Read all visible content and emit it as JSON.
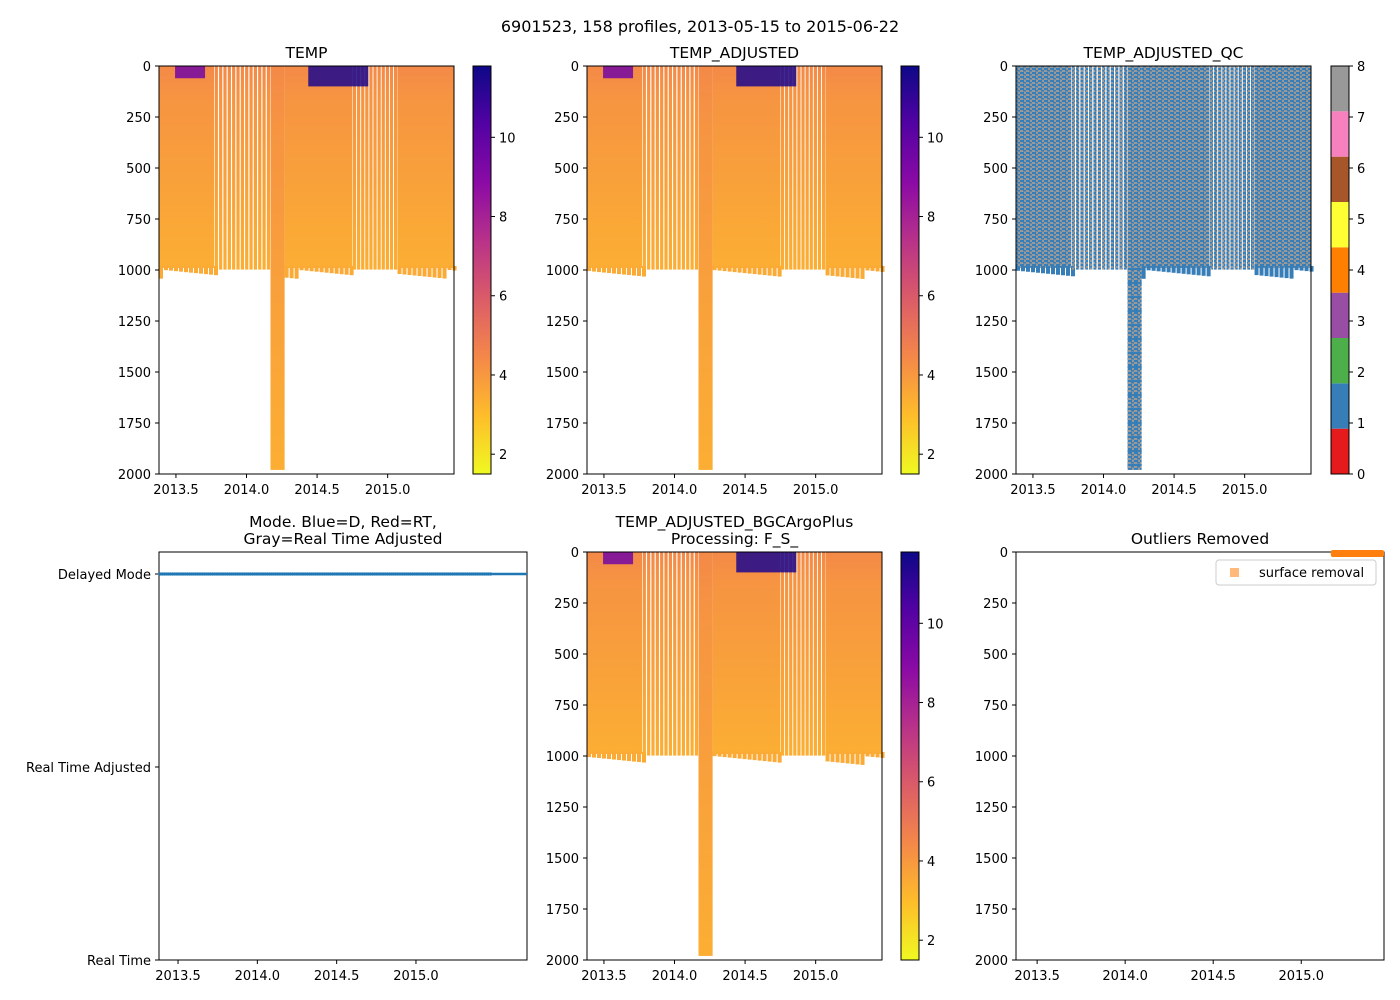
{
  "figure": {
    "title": "6901523, 158 profiles, 2013-05-15 to 2015-06-22"
  },
  "colors": {
    "plasma_stops": [
      "#0d0887",
      "#5302a3",
      "#8b0aa5",
      "#b83289",
      "#db5c68",
      "#f48849",
      "#febd2a",
      "#f0f921"
    ],
    "qc": [
      "#e41a1c",
      "#377eb8",
      "#4daf4a",
      "#984ea3",
      "#ff7f00",
      "#ffff33",
      "#a65628",
      "#f781bf",
      "#999999"
    ],
    "mode_line": "#1f77b4",
    "outlier": "#ff7f0e"
  },
  "chart_data": [
    {
      "id": "temp",
      "type": "heatmap",
      "title": "TEMP",
      "title_lines": [
        "TEMP"
      ],
      "xlabel": "",
      "ylabel": "",
      "xlim": [
        2013.38,
        2015.47
      ],
      "ylim": [
        2000,
        0
      ],
      "xticks": [
        2013.5,
        2014.0,
        2014.5,
        2015.0
      ],
      "xtick_labels": [
        "2013.5",
        "2014.0",
        "2014.5",
        "2015.0"
      ],
      "yticks": [
        0,
        250,
        500,
        750,
        1000,
        1250,
        1500,
        1750,
        2000
      ],
      "ytick_labels": [
        "0",
        "250",
        "500",
        "750",
        "1000",
        "1250",
        "1500",
        "1750",
        "2000"
      ],
      "colorbar": {
        "cmap": "plasma_r",
        "vmin": 1.5,
        "vmax": 11.8,
        "ticks": [
          2,
          4,
          6,
          8,
          10
        ],
        "tick_labels": [
          "2",
          "4",
          "6",
          "8",
          "10"
        ]
      },
      "profile_depth_m": 990,
      "deep_profile": {
        "x_start": 2014.17,
        "x_end": 2014.27,
        "depth_m": 1980
      },
      "gap_periods": [
        [
          2013.77,
          2014.17
        ],
        [
          2014.75,
          2015.07
        ]
      ],
      "surface_warm_events": [
        {
          "x": 2013.6,
          "depth_m": 60,
          "temp": 9.5
        },
        {
          "x": 2014.65,
          "depth_m": 100,
          "temp": 11.5
        }
      ],
      "background_temp": 3.8
    },
    {
      "id": "temp_adjusted",
      "type": "heatmap",
      "title": "TEMP_ADJUSTED",
      "title_lines": [
        "TEMP_ADJUSTED"
      ],
      "xlim": [
        2013.38,
        2015.47
      ],
      "ylim": [
        2000,
        0
      ],
      "xticks": [
        2013.5,
        2014.0,
        2014.5,
        2015.0
      ],
      "xtick_labels": [
        "2013.5",
        "2014.0",
        "2014.5",
        "2015.0"
      ],
      "yticks": [
        0,
        250,
        500,
        750,
        1000,
        1250,
        1500,
        1750,
        2000
      ],
      "ytick_labels": [
        "0",
        "250",
        "500",
        "750",
        "1000",
        "1250",
        "1500",
        "1750",
        "2000"
      ],
      "colorbar": {
        "cmap": "plasma_r",
        "vmin": 1.5,
        "vmax": 11.8,
        "ticks": [
          2,
          4,
          6,
          8,
          10
        ],
        "tick_labels": [
          "2",
          "4",
          "6",
          "8",
          "10"
        ]
      },
      "profile_depth_m": 990,
      "deep_profile": {
        "x_start": 2014.17,
        "x_end": 2014.27,
        "depth_m": 1980
      },
      "gap_periods": [
        [
          2013.77,
          2014.17
        ],
        [
          2014.75,
          2015.07
        ]
      ],
      "surface_warm_events": [
        {
          "x": 2013.6,
          "depth_m": 60,
          "temp": 9.5
        },
        {
          "x": 2014.65,
          "depth_m": 100,
          "temp": 11.5
        }
      ],
      "background_temp": 3.8
    },
    {
      "id": "temp_adjusted_qc",
      "type": "heatmap",
      "title": "TEMP_ADJUSTED_QC",
      "title_lines": [
        "TEMP_ADJUSTED_QC"
      ],
      "xlim": [
        2013.38,
        2015.47
      ],
      "ylim": [
        2000,
        0
      ],
      "xticks": [
        2013.5,
        2014.0,
        2014.5,
        2015.0
      ],
      "xtick_labels": [
        "2013.5",
        "2014.0",
        "2014.5",
        "2015.0"
      ],
      "yticks": [
        0,
        250,
        500,
        750,
        1000,
        1250,
        1500,
        1750,
        2000
      ],
      "ytick_labels": [
        "0",
        "250",
        "500",
        "750",
        "1000",
        "1250",
        "1500",
        "1750",
        "2000"
      ],
      "colorbar": {
        "cmap": "qc",
        "vmin": 0,
        "vmax": 8,
        "ticks": [
          0,
          1,
          2,
          3,
          4,
          5,
          6,
          7,
          8
        ],
        "tick_labels": [
          "0",
          "1",
          "2",
          "3",
          "4",
          "5",
          "6",
          "7",
          "8"
        ]
      },
      "qc_values_present": [
        1,
        8
      ],
      "profile_depth_m": 990,
      "deep_profile": {
        "x_start": 2014.17,
        "x_end": 2014.27,
        "depth_m": 1980
      },
      "gap_periods": [
        [
          2013.77,
          2014.17
        ],
        [
          2014.75,
          2015.07
        ]
      ]
    },
    {
      "id": "mode",
      "type": "scatter",
      "title": "Mode. Blue=D, Red=RT, Gray=Real Time Adjusted",
      "title_lines": [
        "Mode. Blue=D, Red=RT,",
        "Gray=Real Time Adjusted"
      ],
      "xlim": [
        2013.38,
        2015.7
      ],
      "xticks": [
        2013.5,
        2014.0,
        2014.5,
        2015.0
      ],
      "xtick_labels": [
        "2013.5",
        "2014.0",
        "2014.5",
        "2015.0"
      ],
      "ycategories": [
        "Delayed Mode",
        "Real Time Adjusted",
        "Real Time"
      ],
      "series": [
        {
          "name": "D",
          "category": "Delayed Mode",
          "x_start": 2013.37,
          "x_end": 2015.47,
          "count": 158
        }
      ]
    },
    {
      "id": "bgcargoplus",
      "type": "heatmap",
      "title": "TEMP_ADJUSTED_BGCArgoPlus Processing: F_S_",
      "title_lines": [
        "TEMP_ADJUSTED_BGCArgoPlus",
        "Processing: F_S_"
      ],
      "xlim": [
        2013.38,
        2015.47
      ],
      "ylim": [
        2000,
        0
      ],
      "xticks": [
        2013.5,
        2014.0,
        2014.5,
        2015.0
      ],
      "xtick_labels": [
        "2013.5",
        "2014.0",
        "2014.5",
        "2015.0"
      ],
      "yticks": [
        0,
        250,
        500,
        750,
        1000,
        1250,
        1500,
        1750,
        2000
      ],
      "ytick_labels": [
        "0",
        "250",
        "500",
        "750",
        "1000",
        "1250",
        "1500",
        "1750",
        "2000"
      ],
      "colorbar": {
        "cmap": "plasma_r",
        "vmin": 1.5,
        "vmax": 11.8,
        "ticks": [
          2,
          4,
          6,
          8,
          10
        ],
        "tick_labels": [
          "2",
          "4",
          "6",
          "8",
          "10"
        ]
      },
      "profile_depth_m": 990,
      "deep_profile": {
        "x_start": 2014.17,
        "x_end": 2014.27,
        "depth_m": 1980
      },
      "gap_periods": [
        [
          2013.77,
          2014.17
        ],
        [
          2014.75,
          2015.07
        ]
      ],
      "surface_warm_events": [
        {
          "x": 2013.6,
          "depth_m": 60,
          "temp": 9.5
        },
        {
          "x": 2014.65,
          "depth_m": 100,
          "temp": 11.5
        }
      ],
      "background_temp": 3.8
    },
    {
      "id": "outliers",
      "type": "scatter",
      "title": "Outliers Removed",
      "title_lines": [
        "Outliers Removed"
      ],
      "xlim": [
        2013.38,
        2015.47
      ],
      "ylim": [
        2000,
        0
      ],
      "xticks": [
        2013.5,
        2014.0,
        2014.5,
        2015.0
      ],
      "xtick_labels": [
        "2013.5",
        "2014.0",
        "2014.5",
        "2015.0"
      ],
      "yticks": [
        0,
        250,
        500,
        750,
        1000,
        1250,
        1500,
        1750,
        2000
      ],
      "ytick_labels": [
        "0",
        "250",
        "500",
        "750",
        "1000",
        "1250",
        "1500",
        "1750",
        "2000"
      ],
      "legend": {
        "entries": [
          "surface removal"
        ],
        "position": "upper right"
      },
      "series": [
        {
          "name": "surface removal",
          "x_start": 2015.1,
          "x_end": 2015.47,
          "depth_m": [
            0,
            20
          ]
        }
      ]
    }
  ]
}
